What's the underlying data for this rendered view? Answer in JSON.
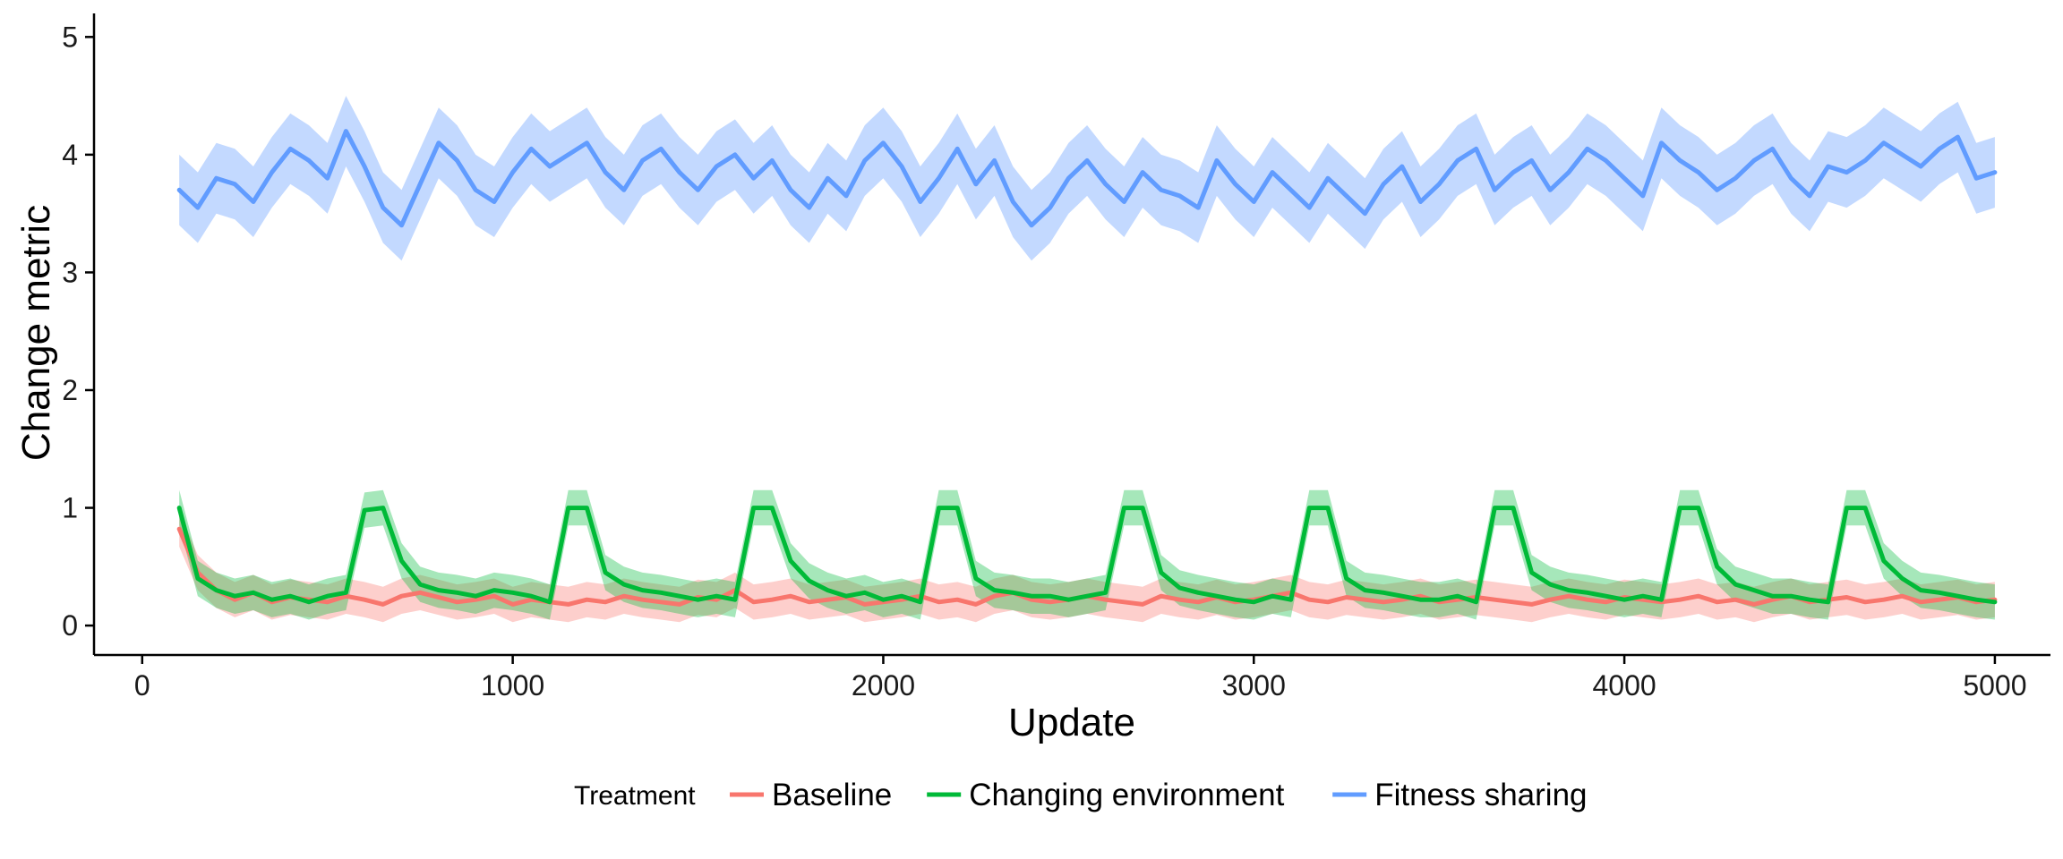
{
  "chart_data": {
    "type": "line",
    "title": "",
    "xlabel": "Update",
    "ylabel": "Change metric",
    "xlim": [
      -130,
      5150
    ],
    "ylim": [
      -0.25,
      5.2
    ],
    "xticks": [
      0,
      1000,
      2000,
      3000,
      4000,
      5000
    ],
    "yticks": [
      0,
      1,
      2,
      3,
      4,
      5
    ],
    "grid": false,
    "legend": {
      "title": "Treatment",
      "position": "bottom",
      "entries": [
        "Baseline",
        "Changing environment",
        "Fitness sharing"
      ]
    },
    "series": [
      {
        "name": "Baseline",
        "color": "#F8766D",
        "band_alpha": 0.35,
        "x_start": 100,
        "x_end": 5000,
        "x_step": 50,
        "values": [
          0.82,
          0.45,
          0.3,
          0.22,
          0.28,
          0.2,
          0.24,
          0.22,
          0.2,
          0.25,
          0.22,
          0.18,
          0.25,
          0.28,
          0.24,
          0.2,
          0.22,
          0.25,
          0.18,
          0.22,
          0.2,
          0.18,
          0.22,
          0.2,
          0.25,
          0.22,
          0.2,
          0.18,
          0.24,
          0.22,
          0.3,
          0.2,
          0.22,
          0.25,
          0.2,
          0.22,
          0.24,
          0.18,
          0.2,
          0.22,
          0.25,
          0.2,
          0.22,
          0.18,
          0.25,
          0.28,
          0.22,
          0.2,
          0.22,
          0.25,
          0.22,
          0.2,
          0.18,
          0.25,
          0.22,
          0.2,
          0.24,
          0.2,
          0.22,
          0.25,
          0.28,
          0.22,
          0.2,
          0.24,
          0.22,
          0.2,
          0.22,
          0.25,
          0.2,
          0.22,
          0.24,
          0.22,
          0.2,
          0.18,
          0.22,
          0.25,
          0.22,
          0.2,
          0.24,
          0.22,
          0.2,
          0.22,
          0.25,
          0.2,
          0.22,
          0.18,
          0.22,
          0.25,
          0.2,
          0.22,
          0.24,
          0.2,
          0.22,
          0.25,
          0.2,
          0.22,
          0.24,
          0.2,
          0.22
        ],
        "band": 0.15
      },
      {
        "name": "Changing environment",
        "color": "#00BA38",
        "band_alpha": 0.35,
        "x_start": 100,
        "x_end": 5000,
        "x_step": 50,
        "values": [
          1.0,
          0.4,
          0.3,
          0.25,
          0.28,
          0.22,
          0.25,
          0.2,
          0.25,
          0.28,
          0.98,
          1.0,
          0.55,
          0.35,
          0.3,
          0.28,
          0.25,
          0.3,
          0.28,
          0.25,
          0.2,
          1.0,
          1.0,
          0.45,
          0.35,
          0.3,
          0.28,
          0.25,
          0.22,
          0.25,
          0.22,
          1.0,
          1.0,
          0.55,
          0.38,
          0.3,
          0.25,
          0.28,
          0.22,
          0.25,
          0.2,
          1.0,
          1.0,
          0.4,
          0.3,
          0.28,
          0.25,
          0.25,
          0.22,
          0.25,
          0.28,
          1.0,
          1.0,
          0.45,
          0.32,
          0.28,
          0.25,
          0.22,
          0.2,
          0.25,
          0.22,
          1.0,
          1.0,
          0.4,
          0.3,
          0.28,
          0.25,
          0.22,
          0.22,
          0.25,
          0.2,
          1.0,
          1.0,
          0.45,
          0.35,
          0.3,
          0.28,
          0.25,
          0.22,
          0.25,
          0.22,
          1.0,
          1.0,
          0.5,
          0.35,
          0.3,
          0.25,
          0.25,
          0.22,
          0.2,
          1.0,
          1.0,
          0.55,
          0.4,
          0.3,
          0.28,
          0.25,
          0.22,
          0.2
        ],
        "band": 0.15
      },
      {
        "name": "Fitness sharing",
        "color": "#619CFF",
        "band_alpha": 0.38,
        "x_start": 100,
        "x_end": 5000,
        "x_step": 50,
        "values": [
          3.7,
          3.55,
          3.8,
          3.75,
          3.6,
          3.85,
          4.05,
          3.95,
          3.8,
          4.2,
          3.9,
          3.55,
          3.4,
          3.75,
          4.1,
          3.95,
          3.7,
          3.6,
          3.85,
          4.05,
          3.9,
          4.0,
          4.1,
          3.85,
          3.7,
          3.95,
          4.05,
          3.85,
          3.7,
          3.9,
          4.0,
          3.8,
          3.95,
          3.7,
          3.55,
          3.8,
          3.65,
          3.95,
          4.1,
          3.9,
          3.6,
          3.8,
          4.05,
          3.75,
          3.95,
          3.6,
          3.4,
          3.55,
          3.8,
          3.95,
          3.75,
          3.6,
          3.85,
          3.7,
          3.65,
          3.55,
          3.95,
          3.75,
          3.6,
          3.85,
          3.7,
          3.55,
          3.8,
          3.65,
          3.5,
          3.75,
          3.9,
          3.6,
          3.75,
          3.95,
          4.05,
          3.7,
          3.85,
          3.95,
          3.7,
          3.85,
          4.05,
          3.95,
          3.8,
          3.65,
          4.1,
          3.95,
          3.85,
          3.7,
          3.8,
          3.95,
          4.05,
          3.8,
          3.65,
          3.9,
          3.85,
          3.95,
          4.1,
          4.0,
          3.9,
          4.05,
          4.15,
          3.8,
          3.85
        ],
        "band": 0.3
      }
    ]
  }
}
